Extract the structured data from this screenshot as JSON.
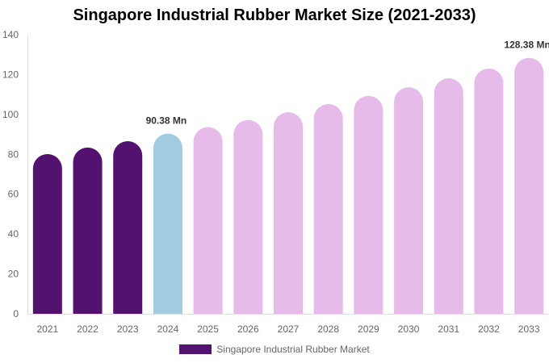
{
  "chart_data": {
    "type": "bar",
    "title": "Singapore Industrial Rubber Market Size (2021-2033)",
    "categories": [
      "2021",
      "2022",
      "2023",
      "2024",
      "2025",
      "2026",
      "2027",
      "2028",
      "2029",
      "2030",
      "2031",
      "2032",
      "2033"
    ],
    "series": [
      {
        "name": "Singapore Industrial Rubber Market",
        "values": [
          80.1,
          83.4,
          86.6,
          90.38,
          93.6,
          97.2,
          101.1,
          105.2,
          109.3,
          113.6,
          118.1,
          123.0,
          128.38
        ]
      }
    ],
    "data_labels": [
      {
        "category": "2024",
        "text": "90.38 Mn"
      },
      {
        "category": "2033",
        "text": "128.38 Mn"
      }
    ],
    "ylim": [
      0,
      140
    ],
    "yticks": [
      0,
      20,
      40,
      60,
      80,
      100,
      120,
      140
    ],
    "grid": false,
    "legend": "bottom",
    "colors": {
      "historical": "#541270",
      "current": "#a3cbe0",
      "forecast": "#e6bbe9"
    }
  }
}
